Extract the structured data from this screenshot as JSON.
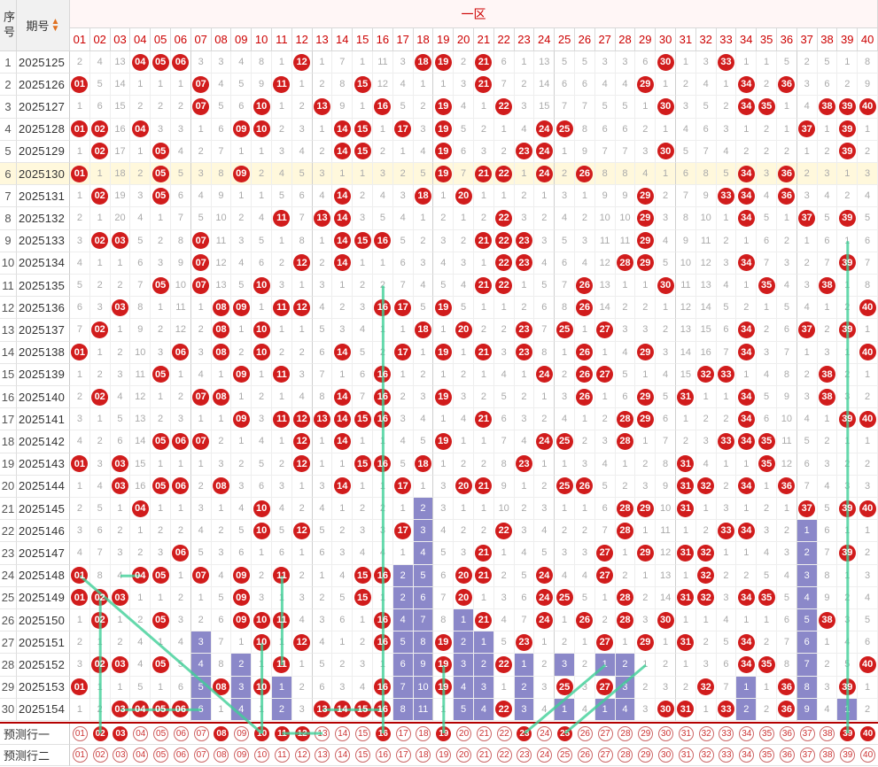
{
  "header": {
    "seq_label": "序号",
    "period_label": "期号",
    "sort_icon": "sort-arrows-icon",
    "zone_title": "一区"
  },
  "numbers": [
    "01",
    "02",
    "03",
    "04",
    "05",
    "06",
    "07",
    "08",
    "09",
    "10",
    "11",
    "12",
    "13",
    "14",
    "15",
    "16",
    "17",
    "18",
    "19",
    "20",
    "21",
    "22",
    "23",
    "24",
    "25",
    "26",
    "27",
    "28",
    "29",
    "30",
    "31",
    "32",
    "33",
    "34",
    "35",
    "36",
    "37",
    "38",
    "39",
    "40"
  ],
  "rows": [
    {
      "seq": "1",
      "period": "2025125",
      "cells": [
        "2",
        "4",
        "13",
        "04",
        "05",
        "06",
        "3",
        "3",
        "4",
        "8",
        "1",
        "12",
        "1",
        "7",
        "1",
        "11",
        "3",
        "18",
        "19",
        "2",
        "21",
        "6",
        "1",
        "13",
        "5",
        "5",
        "3",
        "3",
        "6",
        "30",
        "1",
        "3",
        "33",
        "1",
        "1",
        "5",
        "2",
        "5",
        "1",
        "8"
      ]
    },
    {
      "seq": "2",
      "period": "2025126",
      "cells": [
        "01",
        "5",
        "14",
        "1",
        "1",
        "1",
        "07",
        "4",
        "5",
        "9",
        "11",
        "1",
        "2",
        "8",
        "15",
        "12",
        "4",
        "1",
        "1",
        "3",
        "21",
        "7",
        "2",
        "14",
        "6",
        "6",
        "4",
        "4",
        "29",
        "1",
        "2",
        "4",
        "1",
        "34",
        "2",
        "36",
        "3",
        "6",
        "2",
        "9"
      ]
    },
    {
      "seq": "3",
      "period": "2025127",
      "cells": [
        "1",
        "6",
        "15",
        "2",
        "2",
        "2",
        "07",
        "5",
        "6",
        "10",
        "1",
        "2",
        "13",
        "9",
        "1",
        "16",
        "5",
        "2",
        "19",
        "4",
        "1",
        "22",
        "3",
        "15",
        "7",
        "7",
        "5",
        "5",
        "1",
        "30",
        "3",
        "5",
        "2",
        "34",
        "35",
        "1",
        "4",
        "38",
        "39",
        "40"
      ]
    },
    {
      "seq": "4",
      "period": "2025128",
      "cells": [
        "01",
        "02",
        "16",
        "04",
        "3",
        "3",
        "1",
        "6",
        "09",
        "10",
        "2",
        "3",
        "1",
        "14",
        "15",
        "1",
        "17",
        "3",
        "19",
        "5",
        "2",
        "1",
        "4",
        "24",
        "25",
        "8",
        "6",
        "6",
        "2",
        "1",
        "4",
        "6",
        "3",
        "1",
        "2",
        "1",
        "37",
        "1",
        "39",
        "1"
      ]
    },
    {
      "seq": "5",
      "period": "2025129",
      "cells": [
        "1",
        "02",
        "17",
        "1",
        "05",
        "4",
        "2",
        "7",
        "1",
        "1",
        "3",
        "4",
        "2",
        "14",
        "15",
        "2",
        "1",
        "4",
        "19",
        "6",
        "3",
        "2",
        "23",
        "24",
        "1",
        "9",
        "7",
        "7",
        "3",
        "30",
        "5",
        "7",
        "4",
        "2",
        "2",
        "2",
        "1",
        "2",
        "39",
        "2"
      ]
    },
    {
      "seq": "6",
      "period": "2025130",
      "cells": [
        "01",
        "1",
        "18",
        "2",
        "05",
        "5",
        "3",
        "8",
        "09",
        "2",
        "4",
        "5",
        "3",
        "1",
        "1",
        "3",
        "2",
        "5",
        "19",
        "7",
        "21",
        "22",
        "1",
        "24",
        "2",
        "26",
        "8",
        "8",
        "4",
        "1",
        "6",
        "8",
        "5",
        "34",
        "3",
        "36",
        "2",
        "3",
        "1",
        "3"
      ]
    },
    {
      "seq": "7",
      "period": "2025131",
      "cells": [
        "1",
        "02",
        "19",
        "3",
        "05",
        "6",
        "4",
        "9",
        "1",
        "1",
        "5",
        "6",
        "4",
        "14",
        "2",
        "4",
        "3",
        "18",
        "1",
        "20",
        "1",
        "1",
        "2",
        "1",
        "3",
        "1",
        "9",
        "9",
        "29",
        "2",
        "7",
        "9",
        "33",
        "34",
        "4",
        "36",
        "3",
        "4",
        "2",
        "4"
      ]
    },
    {
      "seq": "8",
      "period": "2025132",
      "cells": [
        "2",
        "1",
        "20",
        "4",
        "1",
        "7",
        "5",
        "10",
        "2",
        "4",
        "11",
        "7",
        "13",
        "14",
        "3",
        "5",
        "4",
        "1",
        "2",
        "1",
        "2",
        "22",
        "3",
        "2",
        "4",
        "2",
        "10",
        "10",
        "29",
        "3",
        "8",
        "10",
        "1",
        "34",
        "5",
        "1",
        "37",
        "5",
        "39",
        "5"
      ]
    },
    {
      "seq": "9",
      "period": "2025133",
      "cells": [
        "3",
        "02",
        "03",
        "5",
        "2",
        "8",
        "07",
        "11",
        "3",
        "5",
        "1",
        "8",
        "1",
        "14",
        "15",
        "16",
        "5",
        "2",
        "3",
        "2",
        "21",
        "22",
        "23",
        "3",
        "5",
        "3",
        "11",
        "11",
        "29",
        "4",
        "9",
        "11",
        "2",
        "1",
        "6",
        "2",
        "1",
        "6",
        "1",
        "6"
      ]
    },
    {
      "seq": "10",
      "period": "2025134",
      "cells": [
        "4",
        "1",
        "1",
        "6",
        "3",
        "9",
        "07",
        "12",
        "4",
        "6",
        "2",
        "12",
        "2",
        "14",
        "1",
        "1",
        "6",
        "3",
        "4",
        "3",
        "1",
        "22",
        "23",
        "4",
        "6",
        "4",
        "12",
        "28",
        "29",
        "5",
        "10",
        "12",
        "3",
        "34",
        "7",
        "3",
        "2",
        "7",
        "39",
        "7"
      ]
    },
    {
      "seq": "11",
      "period": "2025135",
      "cells": [
        "5",
        "2",
        "2",
        "7",
        "05",
        "10",
        "07",
        "13",
        "5",
        "10",
        "3",
        "1",
        "3",
        "1",
        "2",
        "2",
        "7",
        "4",
        "5",
        "4",
        "21",
        "22",
        "1",
        "5",
        "7",
        "26",
        "13",
        "1",
        "1",
        "30",
        "11",
        "13",
        "4",
        "1",
        "35",
        "4",
        "3",
        "38",
        "1",
        "8"
      ]
    },
    {
      "seq": "12",
      "period": "2025136",
      "cells": [
        "6",
        "3",
        "03",
        "8",
        "1",
        "11",
        "1",
        "08",
        "09",
        "1",
        "11",
        "12",
        "4",
        "2",
        "3",
        "16",
        "17",
        "5",
        "19",
        "5",
        "1",
        "1",
        "2",
        "6",
        "8",
        "26",
        "14",
        "2",
        "2",
        "1",
        "12",
        "14",
        "5",
        "2",
        "1",
        "5",
        "4",
        "1",
        "2",
        "40"
      ]
    },
    {
      "seq": "13",
      "period": "2025137",
      "cells": [
        "7",
        "02",
        "1",
        "9",
        "2",
        "12",
        "2",
        "08",
        "1",
        "10",
        "1",
        "1",
        "5",
        "3",
        "4",
        "1",
        "1",
        "18",
        "1",
        "20",
        "2",
        "2",
        "23",
        "7",
        "25",
        "1",
        "27",
        "3",
        "3",
        "2",
        "13",
        "15",
        "6",
        "34",
        "2",
        "6",
        "37",
        "2",
        "39",
        "1"
      ]
    },
    {
      "seq": "14",
      "period": "2025138",
      "cells": [
        "01",
        "1",
        "2",
        "10",
        "3",
        "06",
        "3",
        "08",
        "2",
        "10",
        "2",
        "2",
        "6",
        "14",
        "5",
        "2",
        "17",
        "1",
        "19",
        "1",
        "21",
        "3",
        "23",
        "8",
        "1",
        "26",
        "1",
        "4",
        "29",
        "3",
        "14",
        "16",
        "7",
        "34",
        "3",
        "7",
        "1",
        "3",
        "1",
        "40"
      ]
    },
    {
      "seq": "15",
      "period": "2025139",
      "cells": [
        "1",
        "2",
        "3",
        "11",
        "05",
        "1",
        "4",
        "1",
        "09",
        "1",
        "11",
        "3",
        "7",
        "1",
        "6",
        "16",
        "1",
        "2",
        "1",
        "2",
        "1",
        "4",
        "1",
        "24",
        "2",
        "26",
        "27",
        "5",
        "1",
        "4",
        "15",
        "32",
        "33",
        "1",
        "4",
        "8",
        "2",
        "38",
        "2",
        "1"
      ]
    },
    {
      "seq": "16",
      "period": "2025140",
      "cells": [
        "2",
        "02",
        "4",
        "12",
        "1",
        "2",
        "07",
        "08",
        "1",
        "2",
        "1",
        "4",
        "8",
        "14",
        "7",
        "16",
        "2",
        "3",
        "19",
        "3",
        "2",
        "5",
        "2",
        "1",
        "3",
        "26",
        "1",
        "6",
        "29",
        "5",
        "31",
        "1",
        "1",
        "34",
        "5",
        "9",
        "3",
        "38",
        "3",
        "2"
      ]
    },
    {
      "seq": "17",
      "period": "2025141",
      "cells": [
        "3",
        "1",
        "5",
        "13",
        "2",
        "3",
        "1",
        "1",
        "09",
        "3",
        "11",
        "12",
        "13",
        "14",
        "15",
        "16",
        "3",
        "4",
        "1",
        "4",
        "21",
        "6",
        "3",
        "2",
        "4",
        "1",
        "2",
        "28",
        "29",
        "6",
        "1",
        "2",
        "2",
        "34",
        "6",
        "10",
        "4",
        "1",
        "39",
        "40"
      ]
    },
    {
      "seq": "18",
      "period": "2025142",
      "cells": [
        "4",
        "2",
        "6",
        "14",
        "05",
        "06",
        "07",
        "2",
        "1",
        "4",
        "1",
        "12",
        "1",
        "14",
        "1",
        "1",
        "4",
        "5",
        "19",
        "1",
        "1",
        "7",
        "4",
        "24",
        "25",
        "2",
        "3",
        "28",
        "1",
        "7",
        "2",
        "3",
        "33",
        "34",
        "35",
        "11",
        "5",
        "2",
        "1",
        "1"
      ]
    },
    {
      "seq": "19",
      "period": "2025143",
      "cells": [
        "01",
        "3",
        "03",
        "15",
        "1",
        "1",
        "1",
        "3",
        "2",
        "5",
        "2",
        "12",
        "1",
        "1",
        "15",
        "16",
        "5",
        "18",
        "1",
        "2",
        "2",
        "8",
        "23",
        "1",
        "1",
        "3",
        "4",
        "1",
        "2",
        "8",
        "31",
        "4",
        "1",
        "1",
        "35",
        "12",
        "6",
        "3",
        "2",
        "2"
      ]
    },
    {
      "seq": "20",
      "period": "2025144",
      "cells": [
        "1",
        "4",
        "03",
        "16",
        "05",
        "06",
        "2",
        "08",
        "3",
        "6",
        "3",
        "1",
        "3",
        "14",
        "1",
        "1",
        "17",
        "1",
        "3",
        "20",
        "21",
        "9",
        "1",
        "2",
        "25",
        "26",
        "5",
        "2",
        "3",
        "9",
        "31",
        "32",
        "2",
        "34",
        "1",
        "36",
        "7",
        "4",
        "3",
        "3"
      ]
    },
    {
      "seq": "21",
      "period": "2025145",
      "cells": [
        "2",
        "5",
        "1",
        "04",
        "1",
        "1",
        "3",
        "1",
        "4",
        "10",
        "4",
        "2",
        "4",
        "1",
        "2",
        "2",
        "1",
        "2",
        "3",
        "1",
        "1",
        "10",
        "2",
        "3",
        "1",
        "1",
        "6",
        "28",
        "29",
        "10",
        "31",
        "1",
        "3",
        "1",
        "2",
        "1",
        "37",
        "5",
        "39",
        "40"
      ]
    },
    {
      "seq": "22",
      "period": "2025146",
      "cells": [
        "3",
        "6",
        "2",
        "1",
        "2",
        "2",
        "4",
        "2",
        "5",
        "10",
        "5",
        "12",
        "5",
        "2",
        "3",
        "3",
        "17",
        "3",
        "4",
        "2",
        "2",
        "22",
        "3",
        "4",
        "2",
        "2",
        "7",
        "28",
        "1",
        "11",
        "1",
        "2",
        "33",
        "34",
        "3",
        "2",
        "1",
        "6",
        "1",
        "1"
      ]
    },
    {
      "seq": "23",
      "period": "2025147",
      "cells": [
        "4",
        "7",
        "3",
        "2",
        "3",
        "06",
        "5",
        "3",
        "6",
        "1",
        "6",
        "1",
        "6",
        "3",
        "4",
        "4",
        "1",
        "4",
        "5",
        "3",
        "21",
        "1",
        "4",
        "5",
        "3",
        "3",
        "27",
        "1",
        "29",
        "12",
        "31",
        "32",
        "1",
        "1",
        "4",
        "3",
        "2",
        "7",
        "39",
        "2"
      ]
    },
    {
      "seq": "24",
      "period": "2025148",
      "cells": [
        "01",
        "8",
        "4",
        "04",
        "05",
        "1",
        "07",
        "4",
        "09",
        "2",
        "11",
        "2",
        "1",
        "4",
        "15",
        "16",
        "2",
        "5",
        "6",
        "20",
        "21",
        "2",
        "5",
        "24",
        "4",
        "4",
        "27",
        "2",
        "1",
        "13",
        "1",
        "32",
        "2",
        "2",
        "5",
        "4",
        "3",
        "8",
        "1",
        "3"
      ]
    },
    {
      "seq": "25",
      "period": "2025149",
      "cells": [
        "01",
        "02",
        "03",
        "1",
        "1",
        "2",
        "1",
        "5",
        "09",
        "3",
        "1",
        "3",
        "2",
        "5",
        "15",
        "1",
        "2",
        "6",
        "7",
        "20",
        "1",
        "3",
        "6",
        "24",
        "25",
        "5",
        "1",
        "28",
        "2",
        "14",
        "31",
        "32",
        "3",
        "34",
        "35",
        "5",
        "4",
        "9",
        "2",
        "4"
      ]
    },
    {
      "seq": "26",
      "period": "2025150",
      "cells": [
        "1",
        "02",
        "1",
        "2",
        "05",
        "3",
        "2",
        "6",
        "09",
        "10",
        "11",
        "4",
        "3",
        "6",
        "1",
        "16",
        "4",
        "7",
        "8",
        "1",
        "21",
        "4",
        "7",
        "24",
        "1",
        "26",
        "2",
        "28",
        "3",
        "30",
        "1",
        "1",
        "4",
        "1",
        "1",
        "6",
        "5",
        "38",
        "3",
        "5"
      ]
    },
    {
      "seq": "27",
      "period": "2025151",
      "cells": [
        "2",
        "1",
        "2",
        "4",
        "1",
        "4",
        "3",
        "7",
        "1",
        "10",
        "1",
        "12",
        "4",
        "1",
        "2",
        "16",
        "5",
        "8",
        "19",
        "2",
        "1",
        "5",
        "23",
        "1",
        "2",
        "1",
        "27",
        "1",
        "29",
        "1",
        "31",
        "2",
        "5",
        "34",
        "2",
        "7",
        "6",
        "1",
        "4",
        "6"
      ]
    },
    {
      "seq": "28",
      "period": "2025152",
      "cells": [
        "3",
        "02",
        "03",
        "4",
        "05",
        "5",
        "4",
        "8",
        "2",
        "1",
        "11",
        "1",
        "5",
        "2",
        "3",
        "1",
        "6",
        "9",
        "19",
        "3",
        "2",
        "22",
        "1",
        "2",
        "3",
        "2",
        "1",
        "2",
        "1",
        "2",
        "1",
        "3",
        "6",
        "34",
        "35",
        "8",
        "7",
        "2",
        "5",
        "40"
      ]
    },
    {
      "seq": "29",
      "period": "2025153",
      "cells": [
        "01",
        "1",
        "1",
        "5",
        "1",
        "6",
        "5",
        "08",
        "3",
        "10",
        "1",
        "2",
        "6",
        "3",
        "4",
        "16",
        "7",
        "10",
        "19",
        "4",
        "3",
        "1",
        "2",
        "3",
        "25",
        "3",
        "27",
        "3",
        "2",
        "3",
        "2",
        "32",
        "7",
        "1",
        "1",
        "36",
        "8",
        "3",
        "39",
        "1"
      ]
    },
    {
      "seq": "30",
      "period": "2025154",
      "cells": [
        "1",
        "2",
        "03",
        "04",
        "05",
        "06",
        "6",
        "1",
        "4",
        "1",
        "2",
        "3",
        "13",
        "14",
        "15",
        "16",
        "8",
        "11",
        "1",
        "5",
        "4",
        "22",
        "3",
        "4",
        "1",
        "4",
        "1",
        "4",
        "3",
        "30",
        "31",
        "1",
        "33",
        "2",
        "2",
        "36",
        "9",
        "4",
        "1",
        "2"
      ]
    }
  ],
  "pred_rows": [
    {
      "label": "预测行一",
      "selected": [
        "02",
        "03",
        "08",
        "10",
        "11",
        "12",
        "16",
        "19",
        "23",
        "25",
        "39",
        "40"
      ]
    },
    {
      "label": "预测行二",
      "selected": []
    }
  ]
}
